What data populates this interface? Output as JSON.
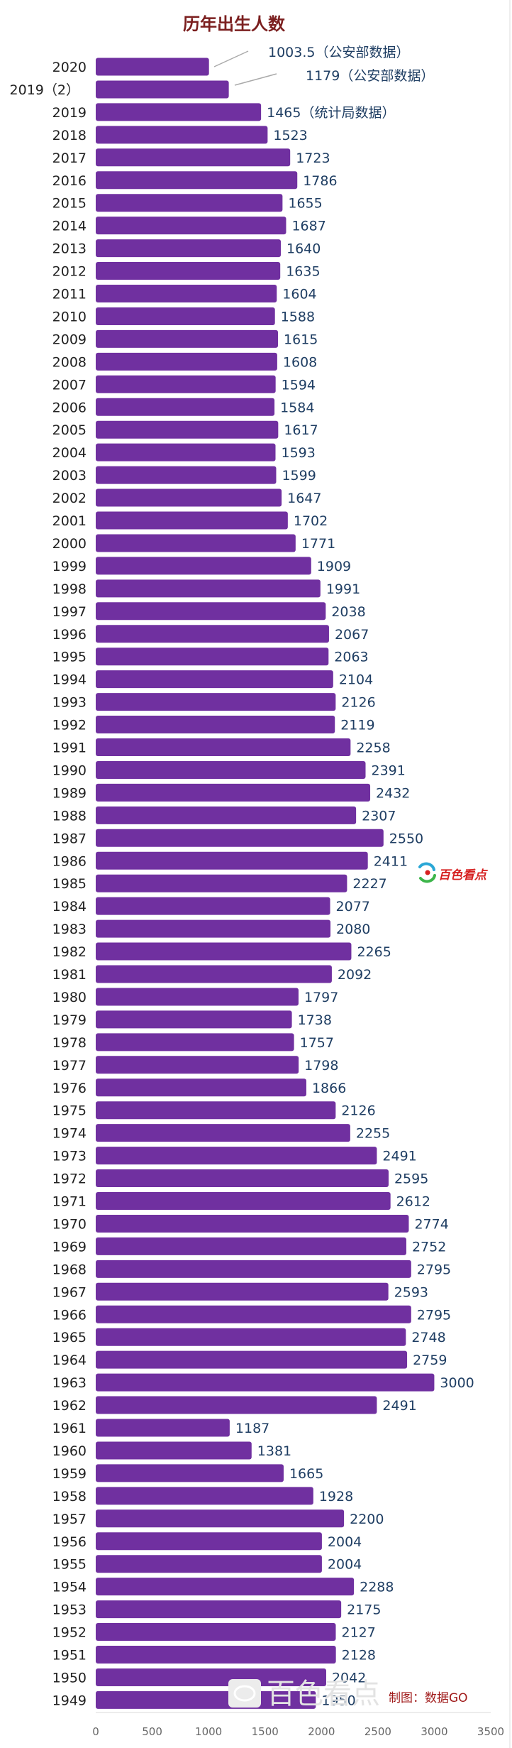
{
  "chart_data": {
    "type": "bar",
    "orientation": "horizontal",
    "title": "历年出生人数",
    "categories": [
      "2020",
      "2019（2）",
      "2019",
      "2018",
      "2017",
      "2016",
      "2015",
      "2014",
      "2013",
      "2012",
      "2011",
      "2010",
      "2009",
      "2008",
      "2007",
      "2006",
      "2005",
      "2004",
      "2003",
      "2002",
      "2001",
      "2000",
      "1999",
      "1998",
      "1997",
      "1996",
      "1995",
      "1994",
      "1993",
      "1992",
      "1991",
      "1990",
      "1989",
      "1988",
      "1987",
      "1986",
      "1985",
      "1984",
      "1983",
      "1982",
      "1981",
      "1980",
      "1979",
      "1978",
      "1977",
      "1976",
      "1975",
      "1974",
      "1973",
      "1972",
      "1971",
      "1970",
      "1969",
      "1968",
      "1967",
      "1966",
      "1965",
      "1964",
      "1963",
      "1962",
      "1961",
      "1960",
      "1959",
      "1958",
      "1957",
      "1956",
      "1955",
      "1954",
      "1953",
      "1952",
      "1951",
      "1950",
      "1949"
    ],
    "values": [
      1003.5,
      1179,
      1465,
      1523,
      1723,
      1786,
      1655,
      1687,
      1640,
      1635,
      1604,
      1588,
      1615,
      1608,
      1594,
      1584,
      1617,
      1593,
      1599,
      1647,
      1702,
      1771,
      1909,
      1991,
      2038,
      2067,
      2063,
      2104,
      2126,
      2119,
      2258,
      2391,
      2432,
      2307,
      2550,
      2411,
      2227,
      2077,
      2080,
      2265,
      2092,
      1797,
      1738,
      1757,
      1798,
      1866,
      2126,
      2255,
      2491,
      2595,
      2612,
      2774,
      2752,
      2795,
      2593,
      2795,
      2748,
      2759,
      3000,
      2491,
      1187,
      1381,
      1665,
      1928,
      2200,
      2004,
      2004,
      2288,
      2175,
      2127,
      2128,
      2042,
      1950
    ],
    "value_labels": [
      "1003.5（公安部数据）",
      "1179（公安部数据）",
      "1465（统计局数据）",
      "1523",
      "1723",
      "1786",
      "1655",
      "1687",
      "1640",
      "1635",
      "1604",
      "1588",
      "1615",
      "1608",
      "1594",
      "1584",
      "1617",
      "1593",
      "1599",
      "1647",
      "1702",
      "1771",
      "1909",
      "1991",
      "2038",
      "2067",
      "2063",
      "2104",
      "2126",
      "2119",
      "2258",
      "2391",
      "2432",
      "2307",
      "2550",
      "2411",
      "2227",
      "2077",
      "2080",
      "2265",
      "2092",
      "1797",
      "1738",
      "1757",
      "1798",
      "1866",
      "2126",
      "2255",
      "2491",
      "2595",
      "2612",
      "2774",
      "2752",
      "2795",
      "2593",
      "2795",
      "2748",
      "2759",
      "3000",
      "2491",
      "1187",
      "1381",
      "1665",
      "1928",
      "2200",
      "2004",
      "2004",
      "2288",
      "2175",
      "2127",
      "2128",
      "2042",
      "1950"
    ],
    "xlim": [
      0,
      3500
    ],
    "x_ticks": [
      "0",
      "500",
      "1000",
      "1500",
      "2000",
      "2500",
      "3000",
      "3500"
    ],
    "bar_color": "#7030a0",
    "grid": false,
    "legend": "none"
  },
  "credit": "制图：数据GO",
  "watermark": "百色看点",
  "brand_logo": {
    "text": "百色看点",
    "icon": "百色看点-logo-icon",
    "colors": [
      "#d62020",
      "#2aa7d6",
      "#3cb54a"
    ]
  },
  "watermark_icon": "百色看点-watermark-icon"
}
